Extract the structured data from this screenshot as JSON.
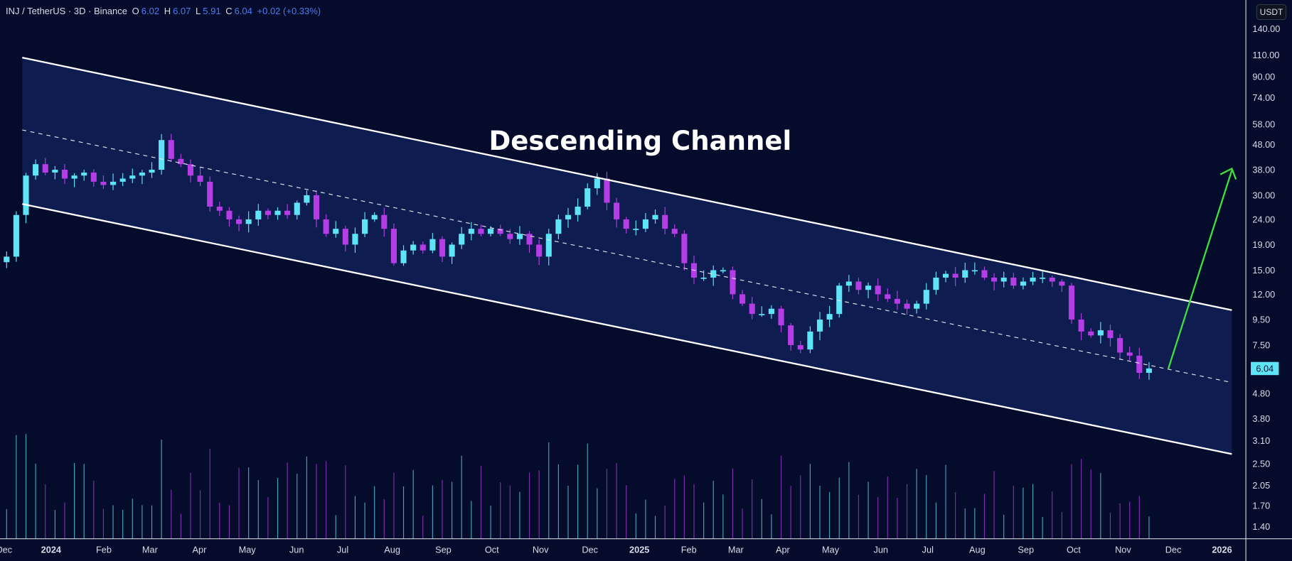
{
  "header": {
    "symbol": "INJ / TetherUS · 3D · Binance",
    "o_label": "O",
    "o": "6.02",
    "h_label": "H",
    "h": "6.07",
    "l_label": "L",
    "l": "5.91",
    "c_label": "C",
    "c": "6.04",
    "change": "+0.02 (+0.33%)"
  },
  "currency_button": "USDT",
  "colors": {
    "background": "#050b2a",
    "up": "#5fe3f7",
    "down": "#b43de6",
    "channel_fill": "#13235c",
    "arrow": "#3ee03e",
    "price_tag": "#5fe3f7"
  },
  "chart_data": {
    "type": "candlestick",
    "title": "Descending Channel",
    "yscale": "log",
    "ylim": [
      1.25,
      160
    ],
    "y_ticks": [
      "140.00",
      "110.00",
      "90.00",
      "74.00",
      "58.00",
      "48.00",
      "38.00",
      "30.00",
      "24.00",
      "19.00",
      "15.00",
      "12.00",
      "9.50",
      "7.50",
      "4.80",
      "3.80",
      "3.10",
      "2.50",
      "2.05",
      "1.70",
      "1.40"
    ],
    "x_ticks": [
      "Dec",
      "2024",
      "Feb",
      "Mar",
      "Apr",
      "May",
      "Jun",
      "Jul",
      "Aug",
      "Sep",
      "Oct",
      "Nov",
      "Dec",
      "2025",
      "Feb",
      "Mar",
      "Apr",
      "May",
      "Jun",
      "Jul",
      "Aug",
      "Sep",
      "Oct",
      "Nov",
      "Dec",
      "2026"
    ],
    "last_price": "6.04",
    "closes": [
      17,
      25,
      36,
      40,
      37,
      38,
      35,
      36,
      37,
      34,
      33,
      34,
      35,
      36,
      37,
      38,
      50,
      42,
      40,
      36,
      34,
      27,
      26,
      24,
      23,
      24,
      26,
      25,
      26,
      25,
      28,
      30,
      24,
      21,
      22,
      19,
      21,
      24,
      25,
      22,
      16,
      18,
      19,
      18,
      20,
      17,
      19,
      21,
      22,
      21,
      22,
      21,
      20,
      21,
      19,
      17,
      21,
      24,
      25,
      27,
      32,
      35,
      28,
      24,
      22,
      22,
      24,
      25,
      22,
      21,
      16,
      14,
      14,
      15,
      15,
      12,
      11,
      10,
      10,
      10.5,
      9,
      7.5,
      7.2,
      8.5,
      9.5,
      10,
      13,
      13.5,
      12.5,
      13,
      12,
      11.5,
      11,
      10.5,
      11,
      12.5,
      14,
      14.5,
      14,
      15,
      15,
      14,
      13.5,
      14,
      13,
      13.5,
      14,
      14,
      13.5,
      13,
      9.5,
      8.5,
      8.2,
      8.6,
      8,
      7,
      6.8,
      5.8,
      6.04
    ],
    "annotations": [
      "Descending Channel",
      "upper channel line",
      "lower channel line",
      "mid dashed line",
      "breakout arrow"
    ]
  }
}
